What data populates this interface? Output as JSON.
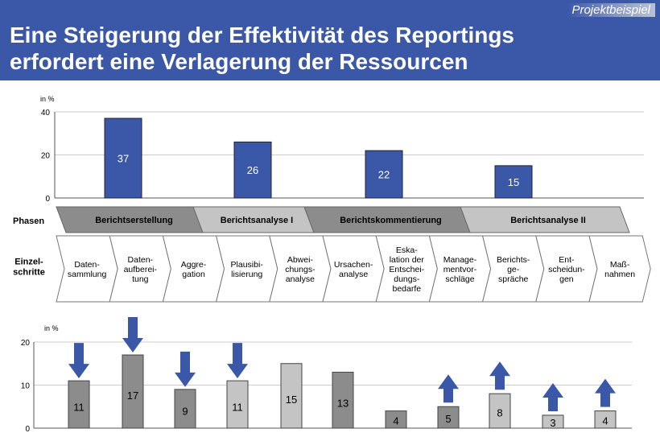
{
  "header": {
    "tag": "Projektbeispiel",
    "title_line1": "Eine Steigerung der Effektivität des Reportings",
    "title_line2": "erfordert eine Verlagerung der Ressourcen"
  },
  "labels": {
    "phases": "Phasen",
    "steps": "Einzel-\nschritte"
  },
  "phases": [
    {
      "name": "Berichtserstellung",
      "color": "#8c8c8c"
    },
    {
      "name": "Berichtsanalyse I",
      "color": "#c4c4c4"
    },
    {
      "name": "Berichtskommentierung",
      "color": "#8c8c8c"
    },
    {
      "name": "Berichtsanalyse II",
      "color": "#c4c4c4"
    }
  ],
  "steps": [
    "Daten-\nsammlung",
    "Daten-\naufberei-\ntung",
    "Aggre-\ngation",
    "Plausibi-\nlisierung",
    "Abwei-\nchungs-\nanalyse",
    "Ursachen-\nanalyse",
    "Eska-\nlation der\nEntschei-\ndungs-\nbedarfe",
    "Manage-\nmentvor-\nschläge",
    "Berichts-\nge-\nspräche",
    "Ent-\nscheidun-\ngen",
    "Maß-\nnahmen"
  ],
  "chart_data": [
    {
      "type": "bar",
      "ylabel": "in %",
      "ylim": [
        0,
        40
      ],
      "yticks": [
        0,
        20,
        40
      ],
      "categories": [
        "Berichtserstellung",
        "Berichtsanalyse I",
        "Berichtskommentierung",
        "Berichtsanalyse II"
      ],
      "values": [
        37,
        26,
        22,
        15
      ],
      "color": "#3a57a8"
    },
    {
      "type": "bar",
      "ylabel": "in %",
      "ylim": [
        0,
        20
      ],
      "yticks": [
        0,
        10,
        20
      ],
      "categories": [
        "Datensammlung",
        "Datenaufbereitung",
        "Aggregation",
        "Plausibilisierung",
        "Abweichungsanalyse",
        "Ursachenanalyse",
        "Eskalation der Entscheidungsbedarfe",
        "Managementvorschläge",
        "Berichtsgespräche",
        "Entscheidungen",
        "Maßnahmen"
      ],
      "values": [
        11,
        17,
        9,
        11,
        15,
        13,
        4,
        5,
        8,
        3,
        4
      ],
      "bar_phase": [
        0,
        0,
        0,
        1,
        1,
        2,
        2,
        2,
        3,
        3,
        3
      ],
      "arrows": [
        "down",
        "down",
        "down",
        "down",
        "",
        "",
        "",
        "up",
        "up",
        "up",
        "up"
      ],
      "arrow_color": "#3a57a8"
    }
  ]
}
